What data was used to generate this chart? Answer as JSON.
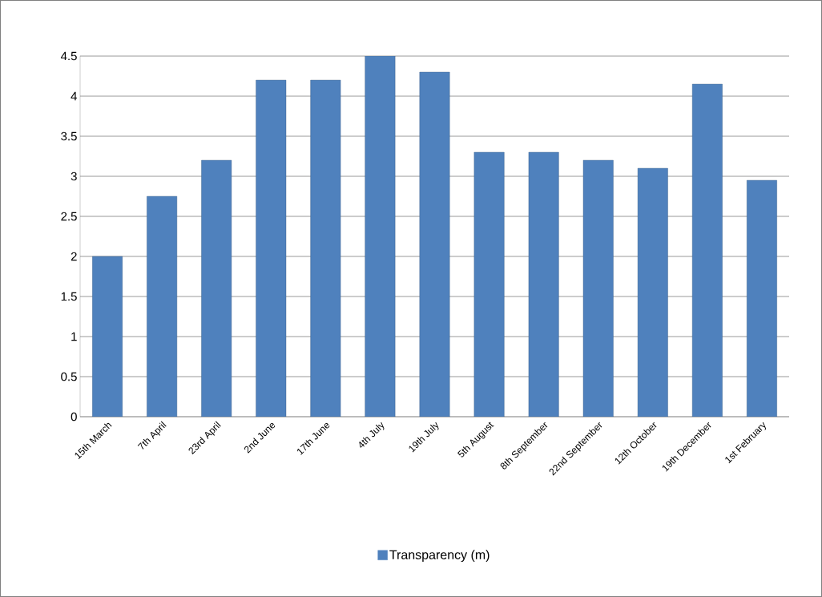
{
  "chart_data": {
    "type": "bar",
    "categories": [
      "15th March",
      "7th April",
      "23rd April",
      "2nd June",
      "17th June",
      "4th July",
      "19th July",
      "5th August",
      "8th September",
      "22nd September",
      "12th October",
      "19th December",
      "1st February"
    ],
    "series": [
      {
        "name": "Transparency (m)",
        "color": "#4f81bd",
        "values": [
          2,
          2.75,
          3.2,
          4.2,
          4.2,
          4.5,
          4.3,
          3.3,
          3.3,
          3.2,
          3.1,
          4.15,
          2.95
        ]
      }
    ],
    "ylim": [
      0,
      4.5
    ],
    "yticks": [
      0,
      0.5,
      1,
      1.5,
      2,
      2.5,
      3,
      3.5,
      4,
      4.5
    ],
    "grid": "y",
    "legend": "bottom"
  }
}
